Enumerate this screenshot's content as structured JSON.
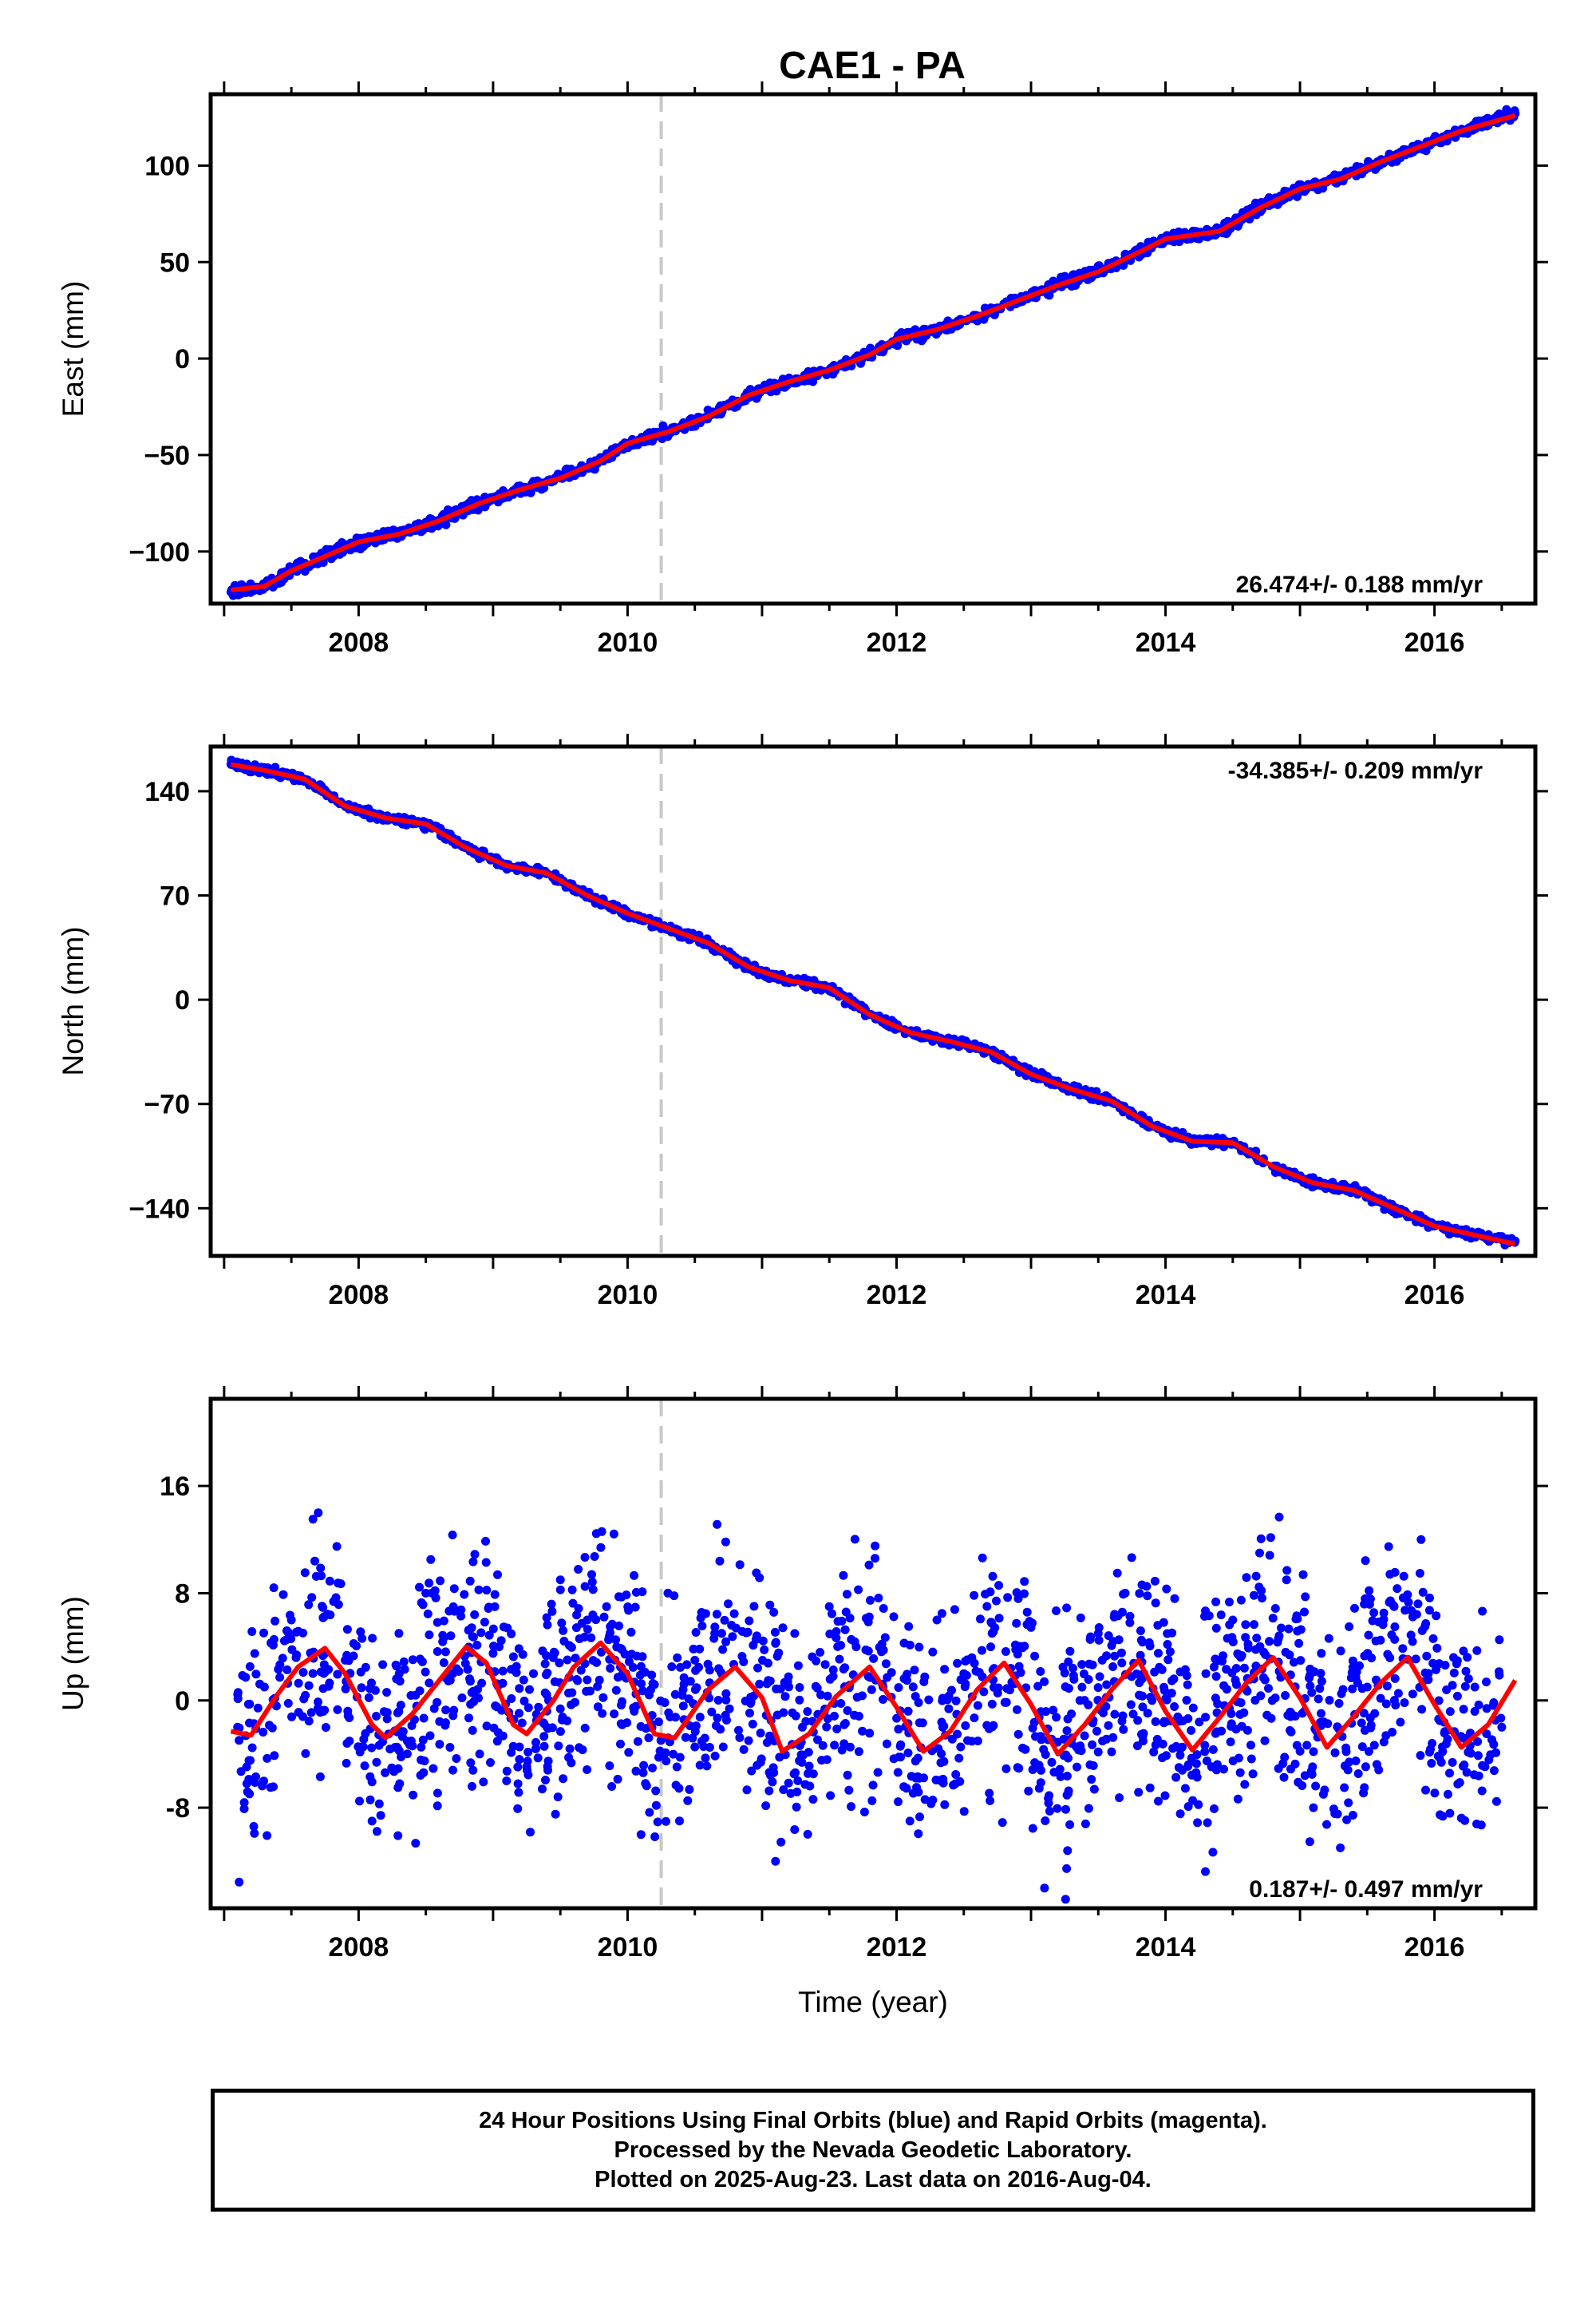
{
  "title": "CAE1 - PA",
  "chart_data": [
    {
      "type": "scatter",
      "ylabel": "East (mm)",
      "xlabel": "",
      "xlim": [
        2006.9,
        2016.75
      ],
      "ylim": [
        -127,
        137
      ],
      "xticks": [
        2008,
        2010,
        2012,
        2014,
        2016
      ],
      "yticks": [
        -100,
        -50,
        0,
        50,
        100
      ],
      "ytick_labels": [
        "−100",
        "−50",
        "0",
        "50",
        "100"
      ],
      "rate_label": "26.474+/- 0.188 mm/yr",
      "rate_position": "bottom-right",
      "event_line_x": 2010.25,
      "series": [
        {
          "role": "daily positions",
          "color": "#0000ff",
          "x": [
            2007.05,
            2007.3,
            2007.5,
            2007.8,
            2008.0,
            2008.3,
            2008.6,
            2008.9,
            2009.2,
            2009.5,
            2009.8,
            2010.0,
            2010.3,
            2010.6,
            2010.9,
            2011.2,
            2011.5,
            2011.8,
            2012.0,
            2012.3,
            2012.6,
            2012.9,
            2013.2,
            2013.5,
            2013.8,
            2014.0,
            2014.4,
            2014.7,
            2015.0,
            2015.3,
            2015.6,
            2015.9,
            2016.2,
            2016.6
          ],
          "y": [
            -121,
            -118,
            -110,
            -101,
            -95,
            -91,
            -84,
            -75,
            -68,
            -62,
            -53,
            -44,
            -38,
            -30,
            -19,
            -12,
            -6,
            2,
            10,
            15,
            22,
            30,
            38,
            45,
            55,
            62,
            66,
            78,
            88,
            93,
            102,
            110,
            118,
            127
          ]
        },
        {
          "role": "model fit",
          "color": "#ff0000",
          "x": [
            2007.05,
            2007.3,
            2007.5,
            2007.8,
            2008.0,
            2008.3,
            2008.6,
            2008.9,
            2009.2,
            2009.5,
            2009.8,
            2010.0,
            2010.3,
            2010.6,
            2010.9,
            2011.2,
            2011.5,
            2011.8,
            2012.0,
            2012.3,
            2012.6,
            2012.9,
            2013.2,
            2013.5,
            2013.8,
            2014.0,
            2014.4,
            2014.7,
            2015.0,
            2015.3,
            2015.6,
            2015.9,
            2016.2,
            2016.6
          ],
          "y": [
            -120,
            -118,
            -110,
            -101,
            -95,
            -91,
            -84,
            -75,
            -68,
            -62,
            -53,
            -44,
            -38,
            -30,
            -19,
            -12,
            -6,
            2,
            10,
            15,
            22,
            30,
            38,
            45,
            55,
            62,
            66,
            78,
            88,
            93,
            102,
            110,
            118,
            126
          ]
        }
      ]
    },
    {
      "type": "scatter",
      "ylabel": "North (mm)",
      "xlabel": "",
      "xlim": [
        2006.9,
        2016.75
      ],
      "ylim": [
        -172,
        170
      ],
      "xticks": [
        2008,
        2010,
        2012,
        2014,
        2016
      ],
      "yticks": [
        -140,
        -70,
        0,
        70,
        140
      ],
      "ytick_labels": [
        "−140",
        "−70",
        "0",
        "70",
        "140"
      ],
      "rate_label": "-34.385+/- 0.209 mm/yr",
      "rate_position": "top-right",
      "event_line_x": 2010.25,
      "series": [
        {
          "role": "daily positions",
          "color": "#0000ff",
          "x": [
            2007.05,
            2007.3,
            2007.6,
            2007.9,
            2008.2,
            2008.5,
            2008.8,
            2009.1,
            2009.4,
            2009.7,
            2010.0,
            2010.3,
            2010.6,
            2010.9,
            2011.2,
            2011.5,
            2011.8,
            2012.1,
            2012.4,
            2012.7,
            2013.0,
            2013.3,
            2013.6,
            2013.9,
            2014.2,
            2014.5,
            2014.8,
            2015.1,
            2015.4,
            2015.7,
            2016.0,
            2016.3,
            2016.6
          ],
          "y": [
            158,
            154,
            148,
            130,
            122,
            118,
            102,
            90,
            85,
            70,
            58,
            48,
            38,
            22,
            13,
            8,
            -10,
            -22,
            -28,
            -35,
            -50,
            -60,
            -68,
            -85,
            -95,
            -96,
            -112,
            -123,
            -128,
            -140,
            -152,
            -158,
            -162
          ]
        },
        {
          "role": "model fit",
          "color": "#ff0000",
          "x": [
            2007.05,
            2007.3,
            2007.6,
            2007.9,
            2008.2,
            2008.5,
            2008.8,
            2009.1,
            2009.4,
            2009.7,
            2010.0,
            2010.3,
            2010.6,
            2010.9,
            2011.2,
            2011.5,
            2011.8,
            2012.1,
            2012.4,
            2012.7,
            2013.0,
            2013.3,
            2013.6,
            2013.9,
            2014.2,
            2014.5,
            2014.8,
            2015.1,
            2015.4,
            2015.7,
            2016.0,
            2016.3,
            2016.6
          ],
          "y": [
            158,
            154,
            148,
            130,
            122,
            118,
            102,
            90,
            85,
            70,
            58,
            48,
            38,
            22,
            13,
            8,
            -10,
            -22,
            -28,
            -35,
            -50,
            -60,
            -68,
            -85,
            -95,
            -96,
            -112,
            -123,
            -128,
            -140,
            -152,
            -158,
            -164
          ]
        }
      ]
    },
    {
      "type": "scatter",
      "ylabel": "Up (mm)",
      "xlabel": "Time (year)",
      "xlim": [
        2006.9,
        2016.75
      ],
      "ylim": [
        -15.5,
        22.5
      ],
      "xticks": [
        2008,
        2010,
        2012,
        2014,
        2016
      ],
      "yticks": [
        -8,
        0,
        8,
        16
      ],
      "ytick_labels": [
        "-8",
        "0",
        "8",
        "16"
      ],
      "rate_label": "0.187+/- 0.497 mm/yr",
      "rate_position": "bottom-right",
      "event_line_x": 2010.25,
      "series": [
        {
          "role": "daily positions",
          "color": "#0000ff",
          "x": [
            2007.1,
            2007.3,
            2007.5,
            2007.7,
            2007.9,
            2008.1,
            2008.3,
            2008.5,
            2008.7,
            2008.9,
            2009.1,
            2009.3,
            2009.5,
            2009.7,
            2009.9,
            2010.1,
            2010.3,
            2010.5,
            2010.7,
            2010.9,
            2011.1,
            2011.3,
            2011.5,
            2011.7,
            2011.9,
            2012.1,
            2012.3,
            2012.5,
            2012.7,
            2012.9,
            2013.1,
            2013.3,
            2013.5,
            2013.7,
            2013.9,
            2014.1,
            2014.3,
            2014.5,
            2014.7,
            2014.9,
            2015.1,
            2015.3,
            2015.5,
            2015.7,
            2015.9,
            2016.1,
            2016.3,
            2016.5
          ],
          "y": [
            -2,
            1,
            6,
            14,
            3,
            -9,
            5,
            8,
            2,
            -4,
            -6,
            2,
            9,
            6,
            -1,
            -10,
            8,
            3,
            5,
            -3,
            -12,
            -2,
            7,
            4,
            1,
            -9,
            6,
            2,
            4,
            -5,
            -14,
            -1,
            5,
            8,
            0,
            -5,
            2,
            6,
            11,
            9,
            -8,
            -11,
            1,
            7,
            12,
            -7,
            1,
            -2
          ]
        },
        {
          "role": "model fit",
          "color": "#ff0000",
          "x": [
            2007.05,
            2007.2,
            2007.4,
            2007.55,
            2007.75,
            2007.9,
            2008.1,
            2008.2,
            2008.4,
            2008.6,
            2008.8,
            2008.95,
            2009.15,
            2009.25,
            2009.45,
            2009.6,
            2009.8,
            2010.0,
            2010.2,
            2010.35,
            2010.6,
            2010.8,
            2011.0,
            2011.15,
            2011.35,
            2011.55,
            2011.8,
            2012.0,
            2012.2,
            2012.4,
            2012.6,
            2012.8,
            2013.0,
            2013.2,
            2013.4,
            2013.6,
            2013.8,
            2014.0,
            2014.2,
            2014.4,
            2014.6,
            2014.8,
            2015.0,
            2015.2,
            2015.4,
            2015.6,
            2015.8,
            2016.0,
            2016.2,
            2016.4,
            2016.6
          ],
          "y": [
            -2.3,
            -2.6,
            0.5,
            2.5,
            3.9,
            2.0,
            -1.8,
            -2.8,
            -1.0,
            1.5,
            4.0,
            2.8,
            -1.8,
            -2.5,
            0.0,
            2.5,
            4.3,
            2.0,
            -2.5,
            -2.8,
            0.8,
            2.5,
            0.2,
            -3.8,
            -2.5,
            0.3,
            2.5,
            -0.5,
            -3.8,
            -2.3,
            0.8,
            2.8,
            -0.3,
            -4.0,
            -1.8,
            0.8,
            3.0,
            -0.8,
            -3.7,
            -1.3,
            1.3,
            3.2,
            0.2,
            -3.5,
            -1.2,
            1.3,
            3.2,
            -0.3,
            -3.5,
            -1.8,
            1.5
          ]
        }
      ]
    }
  ],
  "footer": {
    "line1": "24 Hour Positions Using Final Orbits (blue) and Rapid Orbits (magenta).",
    "line2": "Processed by the Nevada Geodetic Laboratory.",
    "line3": "Plotted on 2025-Aug-23. Last data on 2016-Aug-04."
  }
}
